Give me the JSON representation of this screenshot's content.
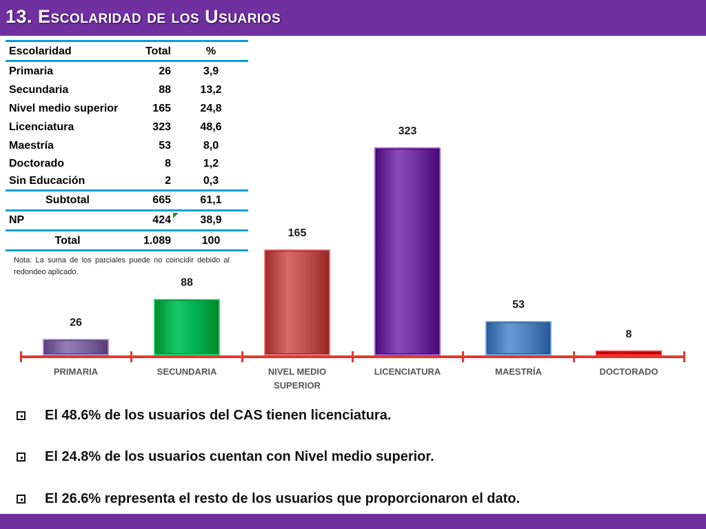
{
  "slide": {
    "title": "13. Escolaridad de los Usuarios"
  },
  "table": {
    "headers": [
      "Escolaridad",
      "Total",
      "%"
    ],
    "rows": [
      {
        "name": "Primaria",
        "total": "26",
        "pct": "3,9"
      },
      {
        "name": "Secundaria",
        "total": "88",
        "pct": "13,2"
      },
      {
        "name": "Nivel medio superior",
        "total": "165",
        "pct": "24,8"
      },
      {
        "name": "Licenciatura",
        "total": "323",
        "pct": "48,6"
      },
      {
        "name": "Maestría",
        "total": "53",
        "pct": "8,0"
      },
      {
        "name": "Doctorado",
        "total": "8",
        "pct": "1,2"
      },
      {
        "name": "Sin Educación",
        "total": "2",
        "pct": "0,3"
      }
    ],
    "subtotal": {
      "name": "Subtotal",
      "total": "665",
      "pct": "61,1"
    },
    "np": {
      "name": "NP",
      "total": "424",
      "pct": "38,9"
    },
    "total": {
      "name": "Total",
      "total": "1.089",
      "pct": "100"
    }
  },
  "note": "Nota: La suma de los parciales puede no coincidir debido al redondeo aplicado.",
  "chart_data": {
    "type": "bar",
    "categories": [
      "PRIMARIA",
      "SECUNDARIA",
      "NIVEL MEDIO SUPERIOR",
      "LICENCIATURA",
      "MAESTRÍA",
      "DOCTORADO"
    ],
    "values": [
      26,
      88,
      165,
      323,
      53,
      8
    ],
    "colors": [
      "#8064a2",
      "#00b050",
      "#c0504d",
      "#7030a0",
      "#4f81bd",
      "#e00000"
    ],
    "title": "",
    "xlabel": "",
    "ylabel": "",
    "ylim": [
      0,
      340
    ],
    "grid": false,
    "legend": "none",
    "axis_color": "#e23a2f"
  },
  "bullets": [
    "El 48.6% de los usuarios del CAS tienen licenciatura.",
    "El 24.8% de los usuarios cuentan con Nivel medio superior.",
    "El  26.6% representa el resto de los usuarios que proporcionaron el dato."
  ]
}
